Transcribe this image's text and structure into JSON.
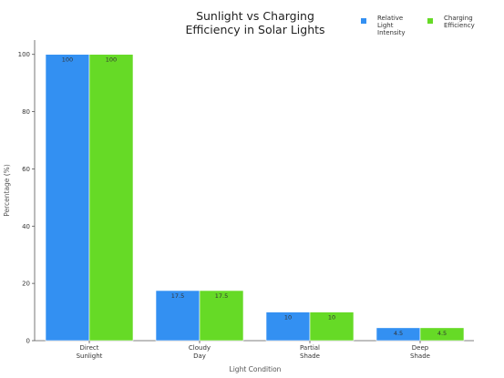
{
  "chart_data": {
    "type": "bar",
    "title": "Sunlight vs Charging\nEfficiency in Solar Lights",
    "xlabel": "Light Condition",
    "ylabel": "Percentage (%)",
    "categories": [
      "Direct\nSunlight",
      "Cloudy\nDay",
      "Partial\nShade",
      "Deep\nShade"
    ],
    "series": [
      {
        "name": "Relative\nLight Intensity",
        "values": [
          100,
          17.5,
          10,
          4.5
        ],
        "color": "#3390f2",
        "labels": [
          "100",
          "17.5",
          "10",
          "4.5"
        ]
      },
      {
        "name": "Charging\nEfficiency",
        "values": [
          100,
          17.5,
          10,
          4.5
        ],
        "color": "#66da26",
        "labels": [
          "100",
          "17.5",
          "10",
          "4.5"
        ]
      }
    ],
    "ylim": [
      0,
      105
    ],
    "yticks": [
      0,
      20,
      40,
      60,
      80,
      100
    ],
    "grid": false,
    "legend_position": "top-right"
  }
}
